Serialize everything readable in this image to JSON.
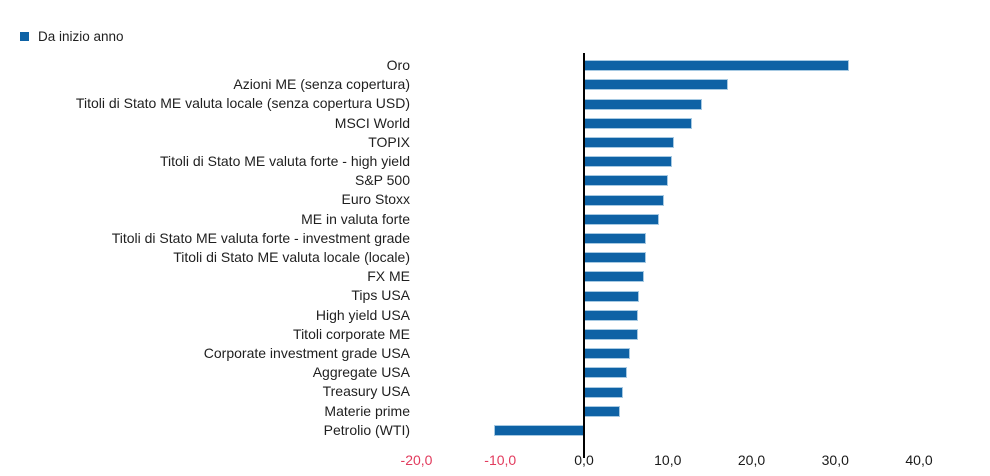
{
  "legend": {
    "label": "Da inizio anno"
  },
  "colors": {
    "bar": "#0e62a5",
    "bar_border": "#a6c9e2",
    "tick_negative": "#e23b5d",
    "tick_default": "#1a1a1a",
    "axis": "#000000",
    "text": "#1f1f1f"
  },
  "chart_data": {
    "type": "bar",
    "orientation": "horizontal",
    "title": "",
    "legend_entries": [
      "Da inizio anno"
    ],
    "legend_position": "top-left",
    "grid": false,
    "xlim": [
      -20,
      40
    ],
    "x_ticks": [
      -20,
      -10,
      0,
      10,
      20,
      30,
      40
    ],
    "x_tick_labels": [
      "-20,0",
      "-10,0",
      "0,0",
      "10,0",
      "20,0",
      "30,0",
      "40,0"
    ],
    "categories": [
      "Oro",
      "Azioni ME (senza copertura)",
      "Titoli di Stato ME valuta locale (senza copertura USD)",
      "MSCI World",
      "TOPIX",
      "Titoli di Stato ME valuta forte - high yield",
      "S&P 500",
      "Euro Stoxx",
      "ME in valuta forte",
      "Titoli di Stato ME valuta forte - investment grade",
      "Titoli di Stato ME valuta locale (locale)",
      "FX ME",
      "Tips USA",
      "High yield USA",
      "Titoli corporate ME",
      "Corporate investment grade USA",
      "Aggregate USA",
      "Treasury USA",
      "Materie prime",
      "Petrolio (WTI)"
    ],
    "values": [
      31.7,
      17.2,
      14.1,
      12.9,
      10.7,
      10.5,
      10.0,
      9.5,
      8.9,
      7.4,
      7.4,
      7.2,
      6.6,
      6.5,
      6.5,
      5.5,
      5.1,
      4.7,
      4.3,
      -10.8
    ]
  }
}
